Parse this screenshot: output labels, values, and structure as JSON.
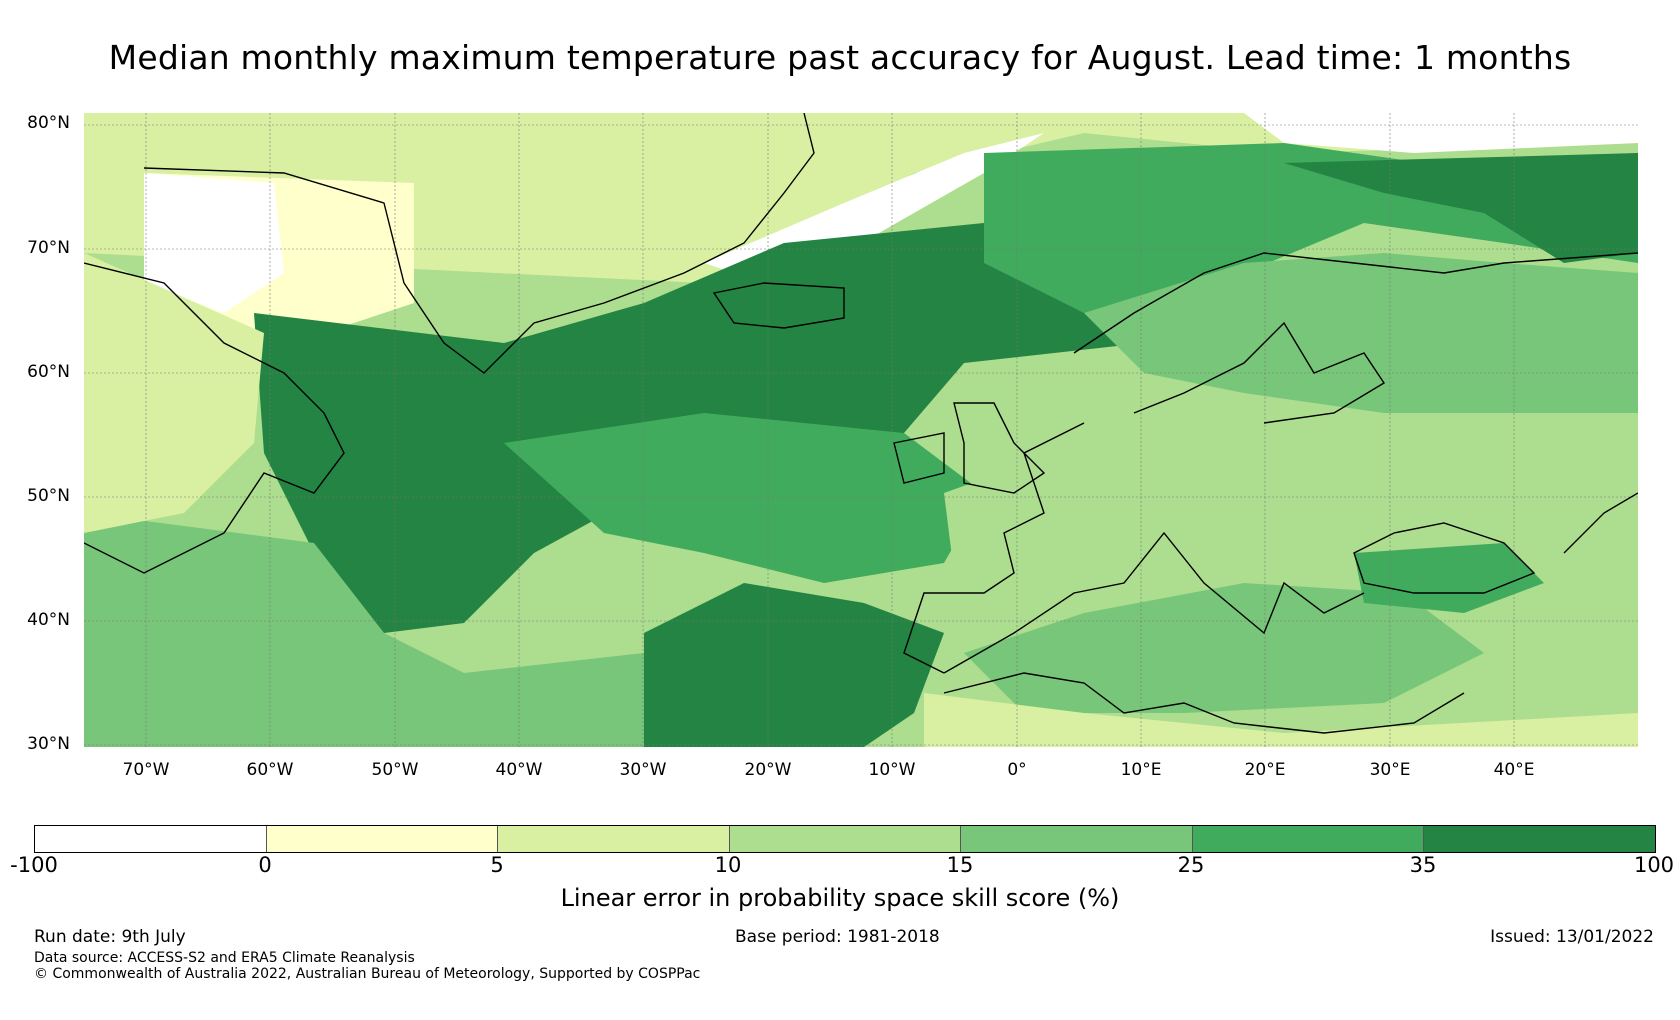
{
  "title": "Median monthly maximum temperature past accuracy for August. Lead time: 1 months",
  "map": {
    "lat_labels": [
      "80°N",
      "70°N",
      "60°N",
      "50°N",
      "40°N",
      "30°N"
    ],
    "lon_labels": [
      "70°W",
      "60°W",
      "50°W",
      "40°W",
      "30°W",
      "20°W",
      "10°W",
      "0°",
      "10°E",
      "20°E",
      "30°E",
      "40°E"
    ],
    "extent": {
      "lon_min": -75,
      "lon_max": 50,
      "lat_min": 30,
      "lat_max": 81
    },
    "land_outline_color": "#000000",
    "gridlines": "on"
  },
  "colorbar": {
    "ticks": [
      "-100",
      "0",
      "5",
      "10",
      "15",
      "25",
      "35",
      "100"
    ],
    "colors": [
      "#ffffff",
      "#ffffcc",
      "#d9f0a3",
      "#addd8e",
      "#78c679",
      "#41ab5d",
      "#238443"
    ],
    "label": "Linear error in probability space skill score (%)"
  },
  "footer": {
    "run_date": "Run date: 9th July",
    "base_period": "Base period: 1981-2018",
    "issued": "Issued: 13/01/2022",
    "data_source": "Data source: ACCESS-S2 and ERA5 Climate Reanalysis",
    "copyright": "© Commonwealth of Australia 2022, Australian Bureau of Meteorology, Supported by COSPPac"
  }
}
